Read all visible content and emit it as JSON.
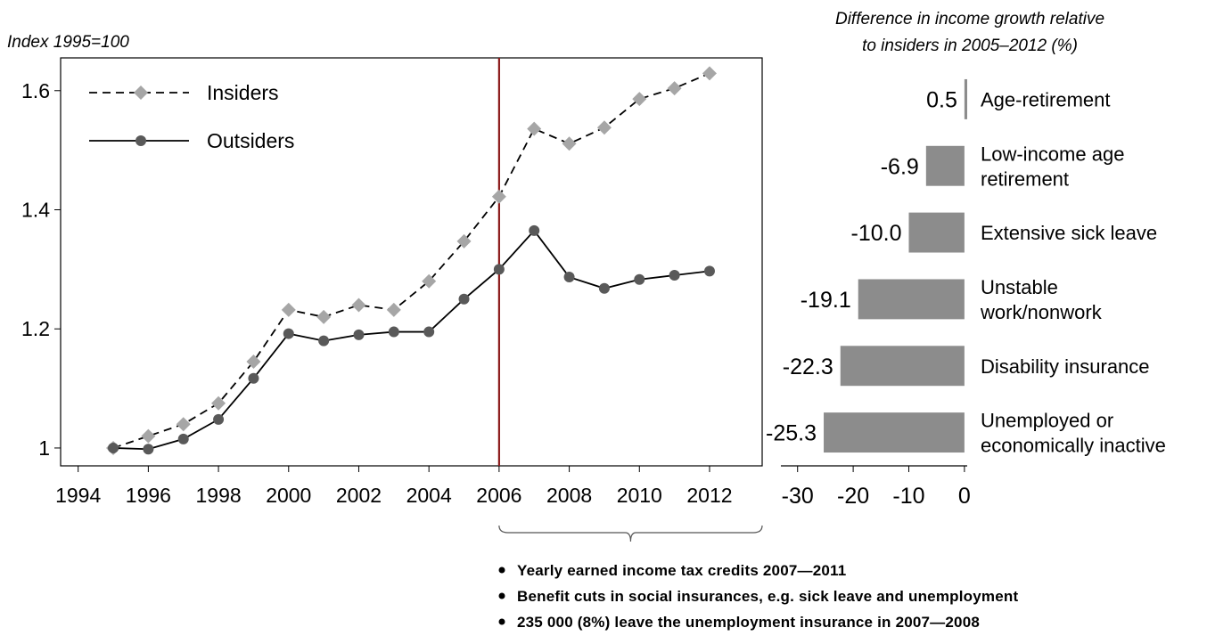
{
  "chart_data": [
    {
      "type": "line",
      "title": "",
      "ylabel": "Index 1995=100",
      "xlabel": "",
      "xlim": [
        1993.5,
        2013.5
      ],
      "ylim": [
        0.97,
        1.655
      ],
      "x_ticks": [
        1994,
        1996,
        1998,
        2000,
        2002,
        2004,
        2006,
        2008,
        2010,
        2012
      ],
      "y_ticks": [
        1,
        1.2,
        1.4,
        1.6
      ],
      "y_tick_labels": [
        "1",
        "1.2",
        "1.4",
        "1.6"
      ],
      "x": [
        1995,
        1996,
        1997,
        1998,
        1999,
        2000,
        2001,
        2002,
        2003,
        2004,
        2005,
        2006,
        2007,
        2008,
        2009,
        2010,
        2011,
        2012
      ],
      "series": [
        {
          "name": "Insiders",
          "style": "dashed",
          "marker": "diamond",
          "color": "#a6a6a6",
          "values": [
            1.0,
            1.02,
            1.04,
            1.075,
            1.145,
            1.232,
            1.22,
            1.24,
            1.232,
            1.28,
            1.347,
            1.422,
            1.536,
            1.511,
            1.538,
            1.586,
            1.604,
            1.629
          ]
        },
        {
          "name": "Outsiders",
          "style": "solid",
          "marker": "circle",
          "color": "#595959",
          "values": [
            1.0,
            0.998,
            1.015,
            1.048,
            1.117,
            1.192,
            1.18,
            1.19,
            1.195,
            1.195,
            1.25,
            1.3,
            1.365,
            1.287,
            1.268,
            1.283,
            1.29,
            1.297
          ]
        }
      ],
      "vertical_marker": {
        "x": 2006,
        "color": "#8b1a1a"
      },
      "legend_position": "top-left",
      "grid": false
    },
    {
      "type": "bar",
      "orientation": "horizontal",
      "title": "Difference in income growth relative to insiders in 2005–2012 (%)",
      "title_lines": [
        "Difference in income growth relative",
        "to insiders in 2005–2012 (%)"
      ],
      "categories": [
        "Age-retirement",
        "Low-income age retirement",
        "Extensive sick leave",
        "Unstable work/nonwork",
        "Disability insurance",
        "Unemployed or economically inactive"
      ],
      "category_lines": [
        [
          "Age-retirement"
        ],
        [
          "Low-income age",
          "retirement"
        ],
        [
          "Extensive sick leave"
        ],
        [
          "Unstable",
          "work/nonwork"
        ],
        [
          "Disability insurance"
        ],
        [
          "Unemployed or",
          "economically inactive"
        ]
      ],
      "values": [
        0.5,
        -6.9,
        -10.0,
        -19.1,
        -22.3,
        -25.3
      ],
      "value_labels": [
        "0.5",
        "-6.9",
        "-10.0",
        "-19.1",
        "-22.3",
        "-25.3"
      ],
      "xlim": [
        -33,
        0.5
      ],
      "x_ticks": [
        -30,
        -20,
        -10,
        0
      ],
      "x_tick_labels": [
        "-30",
        "-20",
        "-10",
        "0"
      ],
      "bar_color": "#8c8c8c",
      "grid": false
    }
  ],
  "annotation": {
    "bracket_span": [
      2006,
      2013.5
    ],
    "bullets": [
      "Yearly earned income tax credits 2007—2011",
      "Benefit cuts in social insurances, e.g. sick leave and unemployment",
      "235 000 (8%) leave the unemployment insurance in 2007—2008"
    ]
  }
}
